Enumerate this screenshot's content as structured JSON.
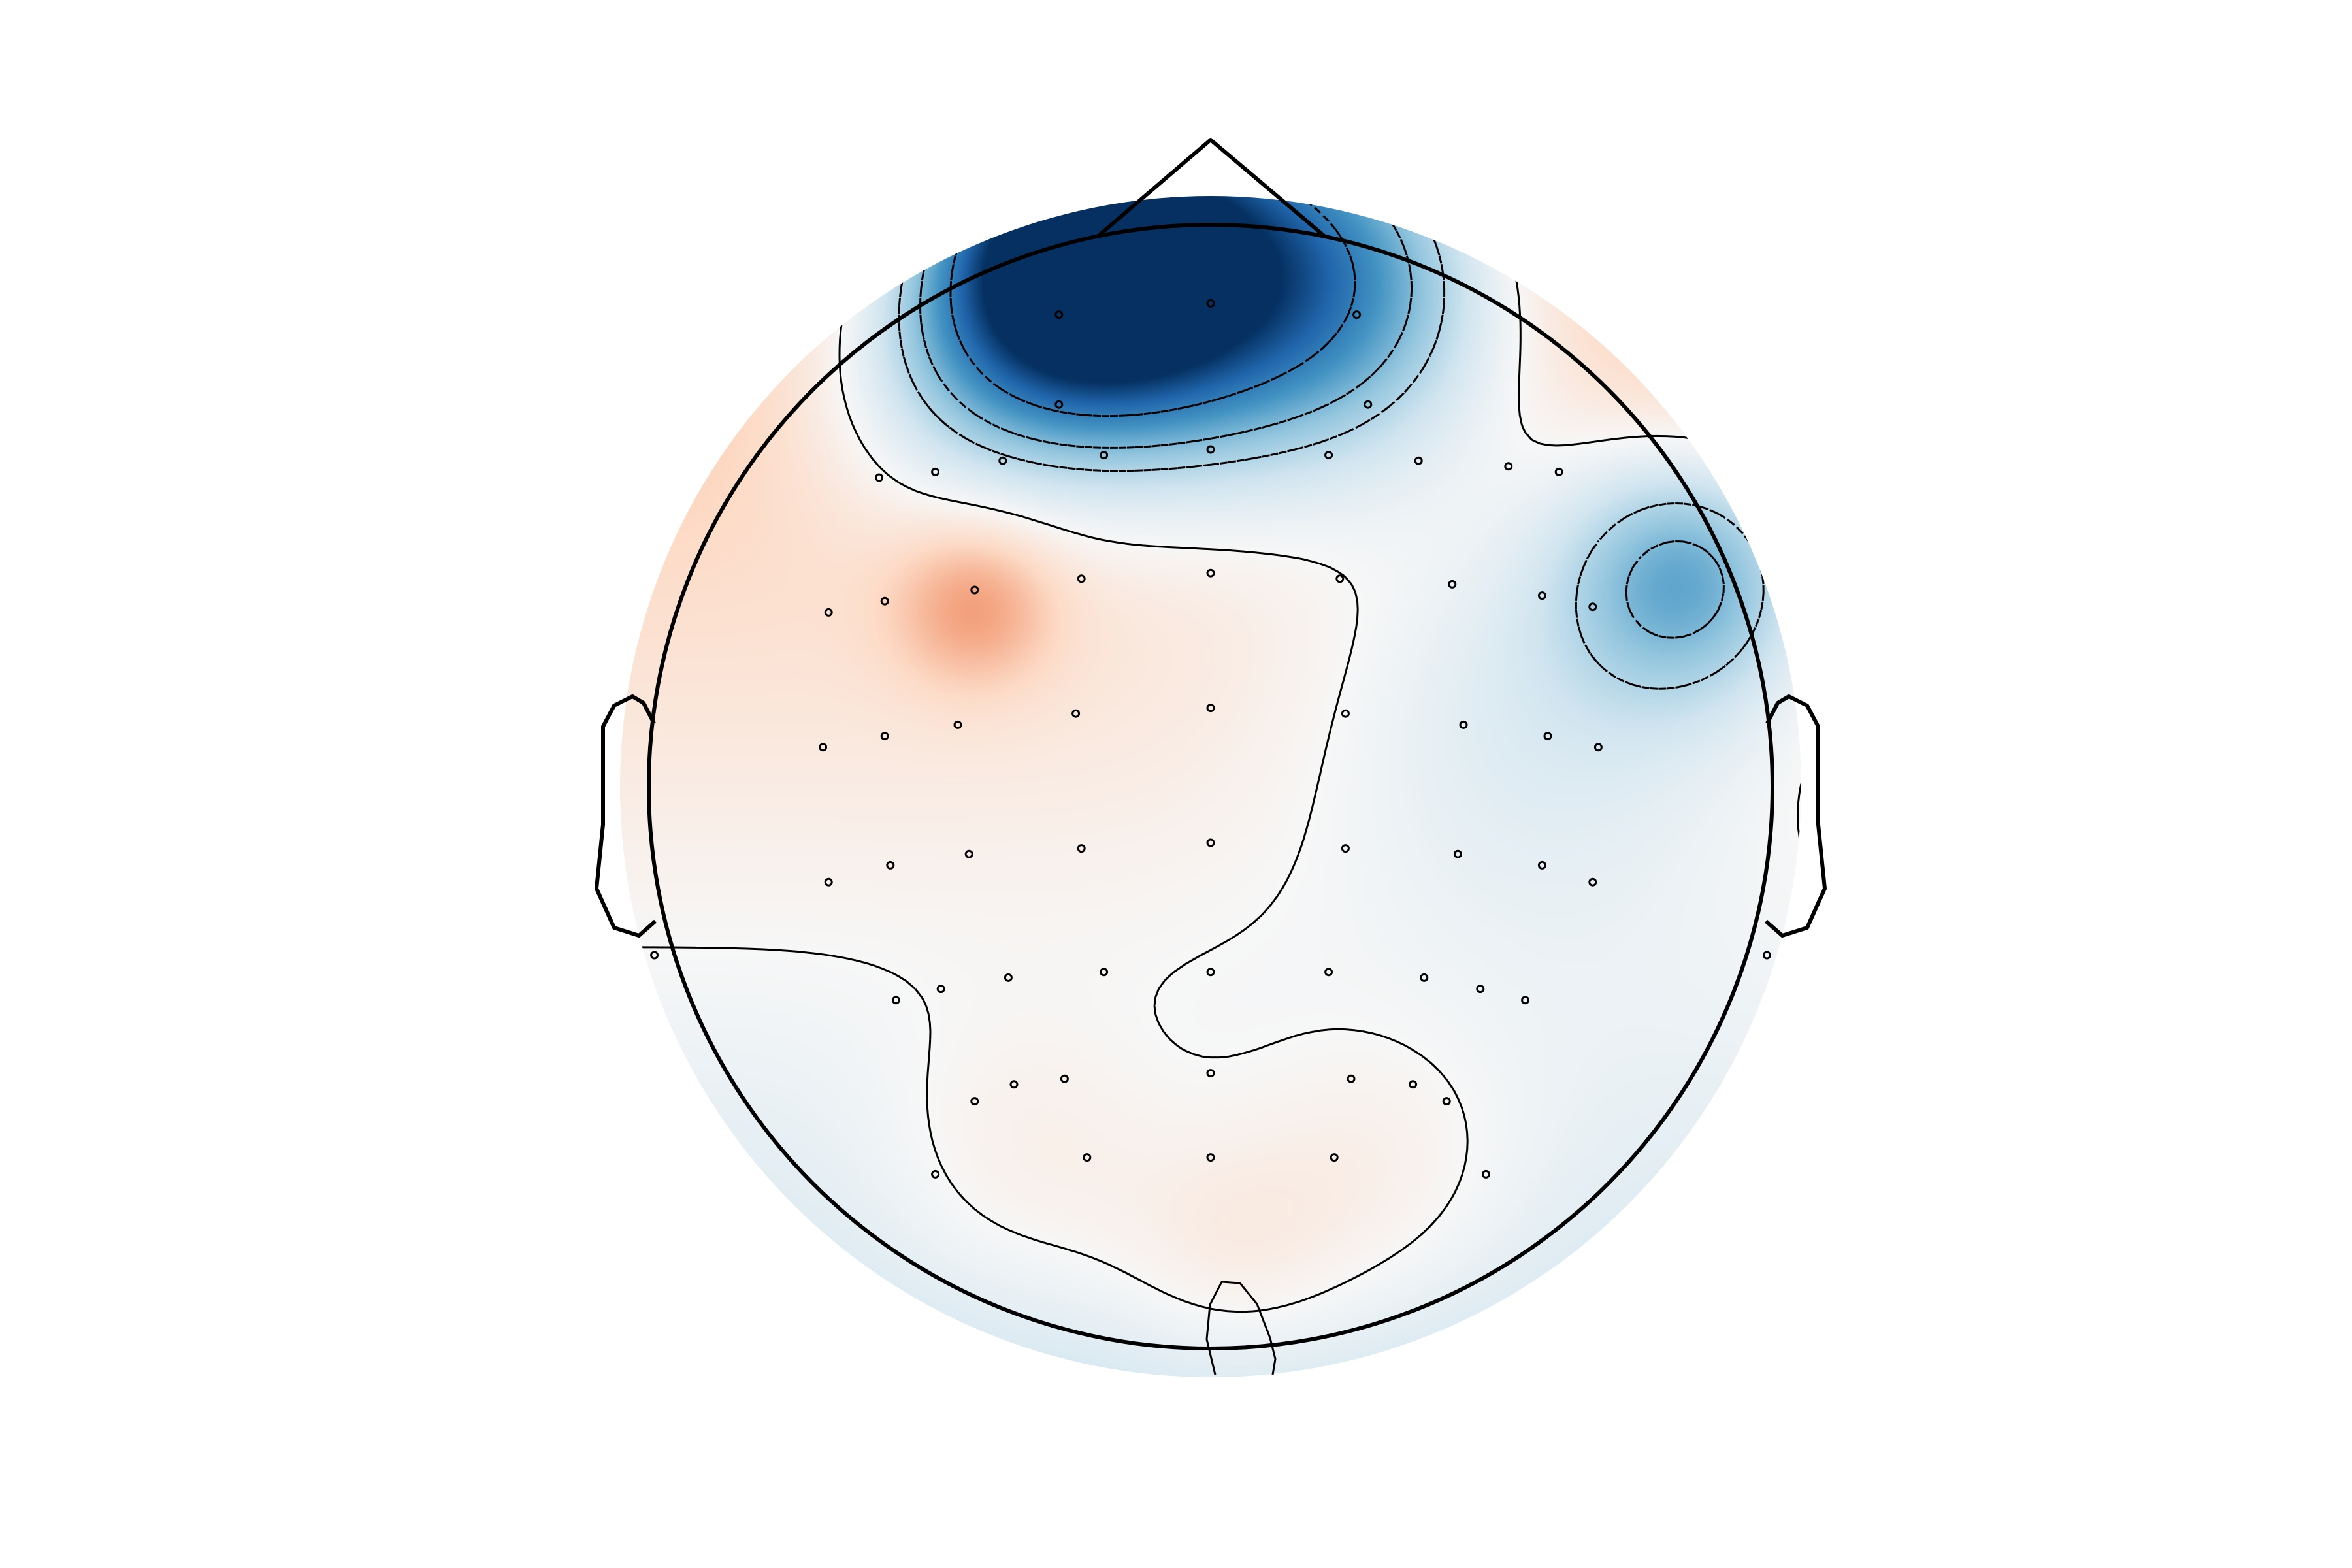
{
  "chart_data": {
    "type": "heatmap",
    "title": "",
    "xlabel": "",
    "ylabel": "",
    "colormap": "RdBu_r",
    "colors": {
      "negative": "#1c5a9a",
      "neutral": "#f4f1ef",
      "positive": "#f6b89a",
      "outline": "#000000"
    },
    "sensors": [
      {
        "x": -0.27,
        "y": 0.84
      },
      {
        "x": 0.0,
        "y": 0.86
      },
      {
        "x": 0.26,
        "y": 0.84
      },
      {
        "x": -0.27,
        "y": 0.68
      },
      {
        "x": 0.28,
        "y": 0.68
      },
      {
        "x": -0.59,
        "y": 0.55
      },
      {
        "x": -0.49,
        "y": 0.56
      },
      {
        "x": -0.37,
        "y": 0.58
      },
      {
        "x": -0.19,
        "y": 0.59
      },
      {
        "x": 0.0,
        "y": 0.6
      },
      {
        "x": 0.21,
        "y": 0.59
      },
      {
        "x": 0.37,
        "y": 0.58
      },
      {
        "x": 0.53,
        "y": 0.57
      },
      {
        "x": 0.62,
        "y": 0.56
      },
      {
        "x": -0.68,
        "y": 0.31
      },
      {
        "x": -0.58,
        "y": 0.33
      },
      {
        "x": -0.42,
        "y": 0.35
      },
      {
        "x": -0.23,
        "y": 0.37
      },
      {
        "x": 0.0,
        "y": 0.38
      },
      {
        "x": 0.23,
        "y": 0.37
      },
      {
        "x": 0.43,
        "y": 0.36
      },
      {
        "x": 0.59,
        "y": 0.34
      },
      {
        "x": 0.68,
        "y": 0.32
      },
      {
        "x": -0.69,
        "y": 0.07
      },
      {
        "x": -0.58,
        "y": 0.09
      },
      {
        "x": -0.45,
        "y": 0.11
      },
      {
        "x": -0.24,
        "y": 0.13
      },
      {
        "x": 0.0,
        "y": 0.14
      },
      {
        "x": 0.24,
        "y": 0.13
      },
      {
        "x": 0.45,
        "y": 0.11
      },
      {
        "x": 0.6,
        "y": 0.09
      },
      {
        "x": 0.69,
        "y": 0.07
      },
      {
        "x": -0.68,
        "y": -0.17
      },
      {
        "x": -0.57,
        "y": -0.14
      },
      {
        "x": -0.43,
        "y": -0.12
      },
      {
        "x": -0.23,
        "y": -0.11
      },
      {
        "x": 0.0,
        "y": -0.1
      },
      {
        "x": 0.24,
        "y": -0.11
      },
      {
        "x": 0.44,
        "y": -0.12
      },
      {
        "x": 0.59,
        "y": -0.14
      },
      {
        "x": 0.68,
        "y": -0.17
      },
      {
        "x": -0.99,
        "y": -0.3
      },
      {
        "x": 0.99,
        "y": -0.3
      },
      {
        "x": -0.56,
        "y": -0.38
      },
      {
        "x": -0.48,
        "y": -0.36
      },
      {
        "x": -0.36,
        "y": -0.34
      },
      {
        "x": -0.19,
        "y": -0.33
      },
      {
        "x": 0.0,
        "y": -0.33
      },
      {
        "x": 0.21,
        "y": -0.33
      },
      {
        "x": 0.38,
        "y": -0.34
      },
      {
        "x": 0.48,
        "y": -0.36
      },
      {
        "x": 0.56,
        "y": -0.38
      },
      {
        "x": -0.42,
        "y": -0.56
      },
      {
        "x": -0.35,
        "y": -0.53
      },
      {
        "x": -0.26,
        "y": -0.52
      },
      {
        "x": 0.0,
        "y": -0.51
      },
      {
        "x": 0.25,
        "y": -0.52
      },
      {
        "x": 0.36,
        "y": -0.53
      },
      {
        "x": 0.42,
        "y": -0.56
      },
      {
        "x": -0.49,
        "y": -0.69
      },
      {
        "x": -0.22,
        "y": -0.66
      },
      {
        "x": 0.0,
        "y": -0.66
      },
      {
        "x": 0.22,
        "y": -0.66
      },
      {
        "x": 0.49,
        "y": -0.69
      }
    ],
    "field": {
      "baseline": 0.08,
      "posterior_gradient": -0.28,
      "sources": [
        {
          "x": -0.25,
          "y": 0.95,
          "amp": -1.0,
          "sigma": 0.18
        },
        {
          "x": -0.1,
          "y": 0.88,
          "amp": -0.6,
          "sigma": 0.22
        },
        {
          "x": 0.25,
          "y": 0.9,
          "amp": -0.55,
          "sigma": 0.22
        },
        {
          "x": 0.0,
          "y": 1.0,
          "amp": -0.45,
          "sigma": 0.3
        },
        {
          "x": -0.45,
          "y": 0.75,
          "amp": -0.35,
          "sigma": 0.2
        },
        {
          "x": 0.85,
          "y": 0.38,
          "amp": -0.55,
          "sigma": 0.16
        },
        {
          "x": 0.6,
          "y": 0.2,
          "amp": -0.25,
          "sigma": 0.3
        },
        {
          "x": -0.42,
          "y": 0.32,
          "amp": 0.3,
          "sigma": 0.1
        },
        {
          "x": -0.32,
          "y": -0.7,
          "amp": 0.15,
          "sigma": 0.2
        },
        {
          "x": 0.3,
          "y": -0.72,
          "amp": 0.15,
          "sigma": 0.2
        },
        {
          "x": 0.03,
          "y": -0.85,
          "amp": 0.15,
          "sigma": 0.16
        }
      ],
      "vmin": -1.0,
      "vmax": 1.0,
      "contour_levels": [
        -0.7,
        -0.45,
        -0.3,
        0.0
      ]
    }
  }
}
